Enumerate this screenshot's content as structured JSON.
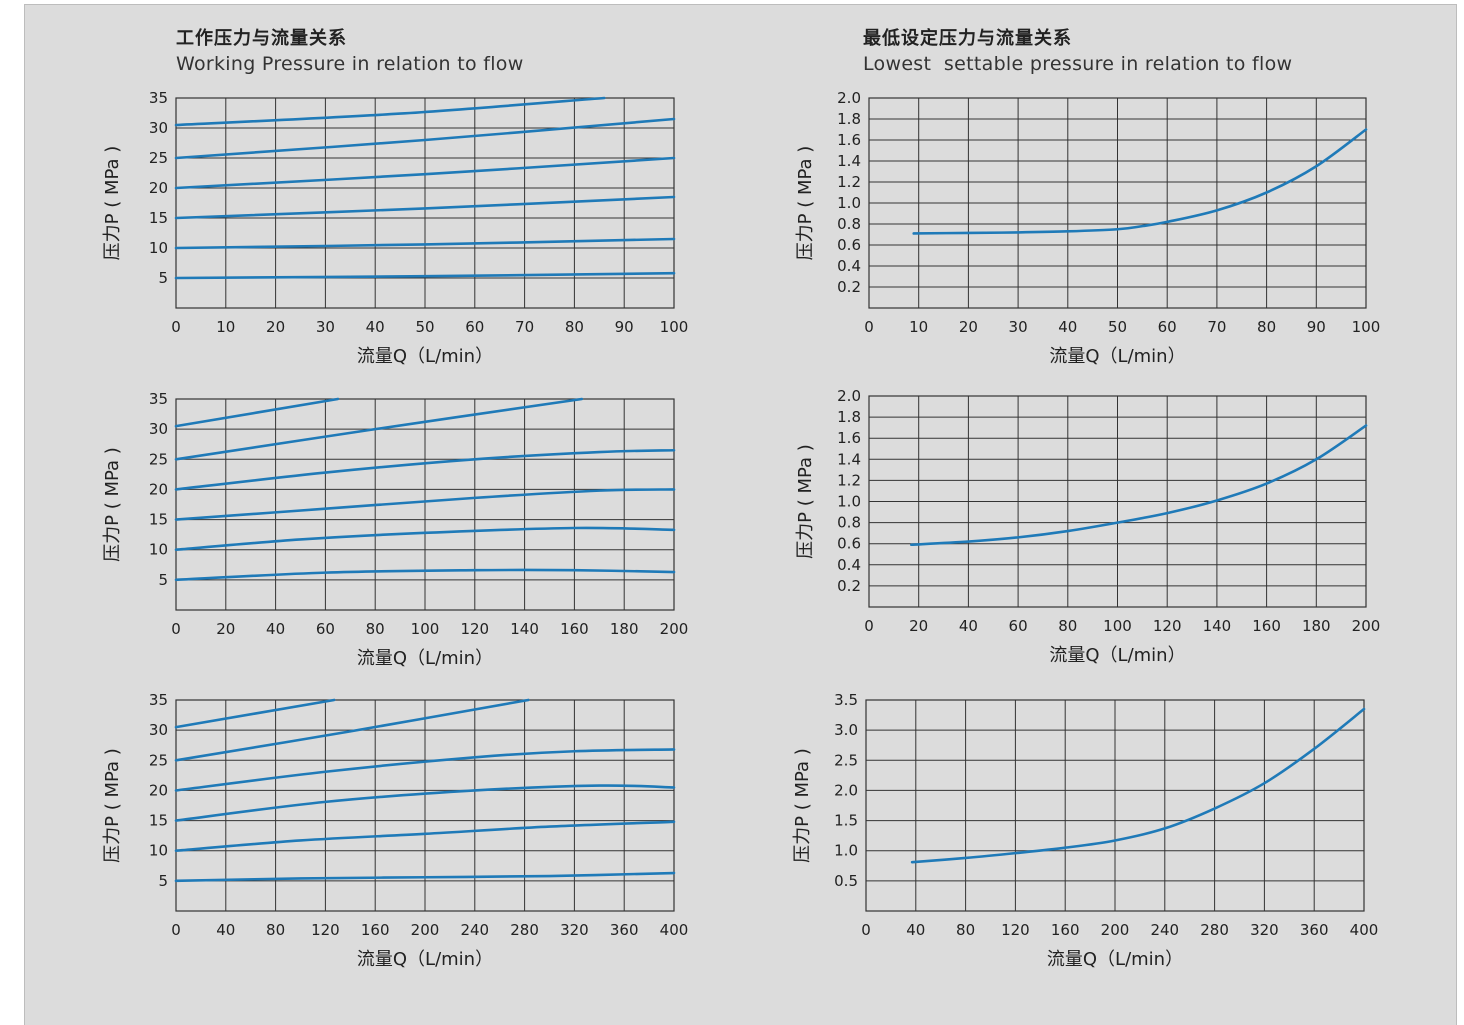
{
  "headings": {
    "left": {
      "cn": "工作压力与流量关系",
      "en": "Working Pressure in relation to flow"
    },
    "right": {
      "cn": "最低设定压力与流量关系",
      "en": "Lowest  settable pressure in relation to flow"
    }
  },
  "colors": {
    "line": "#1f7ab8",
    "grid": "#333333",
    "panel": "#dcdcdc"
  },
  "chart_data": [
    {
      "id": "wp-100",
      "type": "line",
      "title": "",
      "xlabel": "流量Q（L/min）",
      "ylabel": "压力P ( MPa )",
      "xlim": [
        0,
        100
      ],
      "ylim": [
        0,
        35
      ],
      "xticks": [
        0,
        10,
        20,
        30,
        40,
        50,
        60,
        70,
        80,
        90,
        100
      ],
      "yticks": [
        5,
        10,
        15,
        20,
        25,
        30,
        35
      ],
      "xgrid": [
        0,
        10,
        20,
        30,
        40,
        50,
        60,
        70,
        80,
        90,
        100
      ],
      "ygrid": [
        0,
        5,
        10,
        15,
        20,
        25,
        30,
        35
      ],
      "grid": true,
      "series": [
        {
          "points": [
            [
              0,
              5.0
            ],
            [
              50,
              5.3
            ],
            [
              100,
              5.8
            ]
          ]
        },
        {
          "points": [
            [
              0,
              10.0
            ],
            [
              50,
              10.6
            ],
            [
              100,
              11.5
            ]
          ]
        },
        {
          "points": [
            [
              0,
              15.0
            ],
            [
              50,
              16.6
            ],
            [
              100,
              18.5
            ]
          ]
        },
        {
          "points": [
            [
              0,
              20.0
            ],
            [
              50,
              22.3
            ],
            [
              100,
              25.0
            ]
          ]
        },
        {
          "points": [
            [
              0,
              25.0
            ],
            [
              50,
              28.0
            ],
            [
              100,
              31.5
            ]
          ]
        },
        {
          "points": [
            [
              0,
              30.5
            ],
            [
              45,
              32.4
            ],
            [
              86,
              35.0
            ]
          ]
        }
      ]
    },
    {
      "id": "lsp-100",
      "type": "line",
      "title": "",
      "xlabel": "流量Q（L/min）",
      "ylabel": "压力P ( MPa )",
      "xlim": [
        0,
        100
      ],
      "ylim": [
        0,
        2.0
      ],
      "xticks": [
        0,
        10,
        20,
        30,
        40,
        50,
        60,
        70,
        80,
        90,
        100
      ],
      "yticks": [
        0.2,
        0.4,
        0.6,
        0.8,
        1.0,
        1.2,
        1.4,
        1.6,
        1.8,
        2.0
      ],
      "xgrid": [
        0,
        10,
        20,
        30,
        40,
        50,
        60,
        70,
        80,
        90,
        100
      ],
      "ygrid": [
        0,
        0.2,
        0.4,
        0.6,
        0.8,
        1.0,
        1.2,
        1.4,
        1.6,
        1.8,
        2.0
      ],
      "grid": true,
      "series": [
        {
          "points": [
            [
              9,
              0.71
            ],
            [
              20,
              0.715
            ],
            [
              30,
              0.72
            ],
            [
              40,
              0.73
            ],
            [
              50,
              0.75
            ],
            [
              55,
              0.78
            ],
            [
              60,
              0.82
            ],
            [
              70,
              0.93
            ],
            [
              80,
              1.1
            ],
            [
              90,
              1.35
            ],
            [
              100,
              1.7
            ]
          ]
        }
      ]
    },
    {
      "id": "wp-200",
      "type": "line",
      "title": "",
      "xlabel": "流量Q（L/min）",
      "ylabel": "压力P ( MPa )",
      "xlim": [
        0,
        200
      ],
      "ylim": [
        0,
        35
      ],
      "xticks": [
        0,
        20,
        40,
        60,
        80,
        100,
        120,
        140,
        160,
        180,
        200
      ],
      "yticks": [
        5,
        10,
        15,
        20,
        25,
        30,
        35
      ],
      "xgrid": [
        0,
        20,
        40,
        60,
        80,
        100,
        120,
        140,
        160,
        180,
        200
      ],
      "ygrid": [
        0,
        5,
        10,
        15,
        20,
        25,
        30,
        35
      ],
      "grid": true,
      "series": [
        {
          "points": [
            [
              0,
              5.0
            ],
            [
              60,
              6.2
            ],
            [
              120,
              6.6
            ],
            [
              160,
              6.6
            ],
            [
              200,
              6.3
            ]
          ]
        },
        {
          "points": [
            [
              0,
              10.0
            ],
            [
              50,
              11.7
            ],
            [
              100,
              12.8
            ],
            [
              160,
              13.6
            ],
            [
              200,
              13.3
            ]
          ]
        },
        {
          "points": [
            [
              0,
              15.0
            ],
            [
              60,
              16.8
            ],
            [
              120,
              18.6
            ],
            [
              170,
              19.8
            ],
            [
              200,
              20.0
            ]
          ]
        },
        {
          "points": [
            [
              0,
              20.0
            ],
            [
              60,
              22.8
            ],
            [
              120,
              25.0
            ],
            [
              170,
              26.2
            ],
            [
              200,
              26.5
            ]
          ]
        },
        {
          "points": [
            [
              0,
              25.0
            ],
            [
              80,
              30.0
            ],
            [
              163,
              35.0
            ]
          ]
        },
        {
          "points": [
            [
              0,
              30.5
            ],
            [
              65,
              35.0
            ]
          ]
        }
      ]
    },
    {
      "id": "lsp-200",
      "type": "line",
      "title": "",
      "xlabel": "流量Q（L/min）",
      "ylabel": "压力P ( MPa )",
      "xlim": [
        0,
        200
      ],
      "ylim": [
        0,
        2.0
      ],
      "xticks": [
        0,
        20,
        40,
        60,
        80,
        100,
        120,
        140,
        160,
        180,
        200
      ],
      "yticks": [
        0.2,
        0.4,
        0.6,
        0.8,
        1.0,
        1.2,
        1.4,
        1.6,
        1.8,
        2.0
      ],
      "xgrid": [
        0,
        20,
        40,
        60,
        80,
        100,
        120,
        140,
        160,
        180,
        200
      ],
      "ygrid": [
        0,
        0.2,
        0.4,
        0.6,
        0.8,
        1.0,
        1.2,
        1.4,
        1.6,
        1.8,
        2.0
      ],
      "grid": true,
      "series": [
        {
          "points": [
            [
              17,
              0.59
            ],
            [
              40,
              0.62
            ],
            [
              60,
              0.66
            ],
            [
              80,
              0.72
            ],
            [
              100,
              0.8
            ],
            [
              120,
              0.89
            ],
            [
              140,
              1.01
            ],
            [
              160,
              1.17
            ],
            [
              180,
              1.4
            ],
            [
              200,
              1.72
            ]
          ]
        }
      ]
    },
    {
      "id": "wp-400",
      "type": "line",
      "title": "",
      "xlabel": "流量Q（L/min）",
      "ylabel": "压力P ( MPa )",
      "xlim": [
        0,
        400
      ],
      "ylim": [
        0,
        35
      ],
      "xticks": [
        0,
        40,
        80,
        120,
        160,
        200,
        240,
        280,
        320,
        360,
        400
      ],
      "yticks": [
        5,
        10,
        15,
        20,
        25,
        30,
        35
      ],
      "xgrid": [
        0,
        40,
        80,
        120,
        160,
        200,
        240,
        280,
        320,
        360,
        400
      ],
      "ygrid": [
        0,
        5,
        10,
        15,
        20,
        25,
        30,
        35
      ],
      "grid": true,
      "series": [
        {
          "points": [
            [
              0,
              5.0
            ],
            [
              100,
              5.4
            ],
            [
              200,
              5.6
            ],
            [
              300,
              5.8
            ],
            [
              400,
              6.3
            ]
          ]
        },
        {
          "points": [
            [
              0,
              10.0
            ],
            [
              100,
              11.7
            ],
            [
              200,
              12.8
            ],
            [
              300,
              14.0
            ],
            [
              400,
              14.8
            ]
          ]
        },
        {
          "points": [
            [
              0,
              15.0
            ],
            [
              120,
              18.1
            ],
            [
              240,
              20.0
            ],
            [
              340,
              20.8
            ],
            [
              400,
              20.5
            ]
          ]
        },
        {
          "points": [
            [
              0,
              20.0
            ],
            [
              120,
              23.1
            ],
            [
              240,
              25.5
            ],
            [
              320,
              26.5
            ],
            [
              400,
              26.8
            ]
          ]
        },
        {
          "points": [
            [
              0,
              25.0
            ],
            [
              140,
              29.8
            ],
            [
              283,
              35.0
            ]
          ]
        },
        {
          "points": [
            [
              0,
              30.5
            ],
            [
              127,
              35.0
            ]
          ]
        }
      ]
    },
    {
      "id": "lsp-400",
      "type": "line",
      "title": "",
      "xlabel": "流量Q（L/min）",
      "ylabel": "压力P ( MPa )",
      "xlim": [
        0,
        400
      ],
      "ylim": [
        0,
        3.5
      ],
      "xticks": [
        0,
        40,
        80,
        120,
        160,
        200,
        240,
        280,
        320,
        360,
        400
      ],
      "yticks": [
        0.5,
        1.0,
        1.5,
        2.0,
        2.5,
        3.0,
        3.5
      ],
      "xgrid": [
        0,
        40,
        80,
        120,
        160,
        200,
        240,
        280,
        320,
        360,
        400
      ],
      "ygrid": [
        0,
        0.5,
        1.0,
        1.5,
        2.0,
        2.5,
        3.0,
        3.5
      ],
      "grid": true,
      "series": [
        {
          "points": [
            [
              37,
              0.81
            ],
            [
              80,
              0.88
            ],
            [
              120,
              0.96
            ],
            [
              160,
              1.05
            ],
            [
              200,
              1.17
            ],
            [
              240,
              1.37
            ],
            [
              280,
              1.7
            ],
            [
              320,
              2.12
            ],
            [
              360,
              2.69
            ],
            [
              400,
              3.35
            ]
          ]
        }
      ]
    }
  ]
}
